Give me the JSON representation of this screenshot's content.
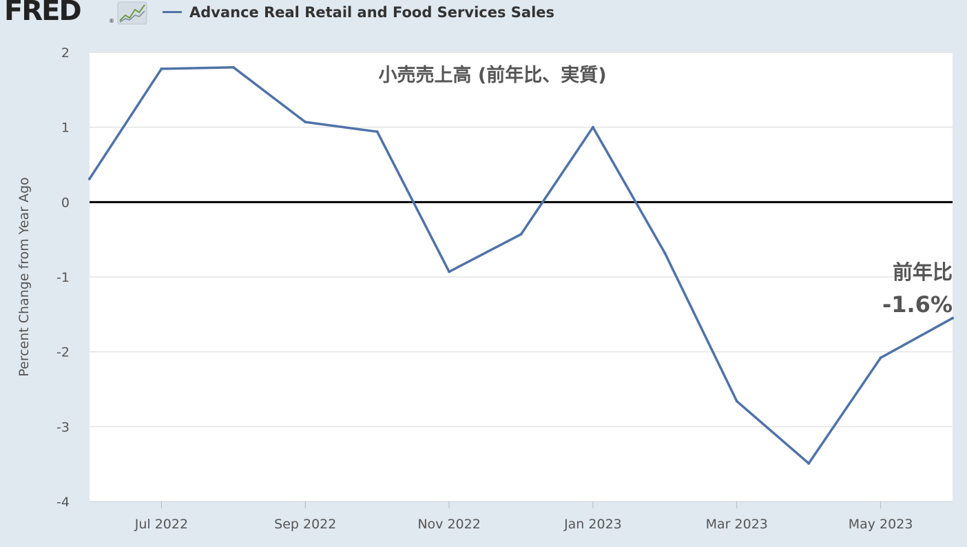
{
  "header": {
    "logo_text": "FRED",
    "logo_reg": "®",
    "logo_icon": "line-graph-icon",
    "legend_label": "Advance Real Retail and Food Services Sales",
    "legend_color": "#4f72a8"
  },
  "chart_data": {
    "type": "line",
    "title": "小売売上高 (前年比、実質)",
    "ylabel": "Percent Change from Year Ago",
    "xlabel": "",
    "x_tick_labels": [
      "Jul 2022",
      "Sep 2022",
      "Nov 2022",
      "Jan 2023",
      "Mar 2023",
      "May 2023"
    ],
    "y_ticks": [
      2,
      1,
      0,
      -1,
      -2,
      -3,
      -4
    ],
    "ylim": [
      -4,
      2
    ],
    "xlim": [
      "2022-06",
      "2023-06"
    ],
    "grid": true,
    "zero_line": true,
    "series": [
      {
        "color": "#4f72a8",
        "points": [
          {
            "x": "2022-06",
            "y": 0.31
          },
          {
            "x": "2022-07",
            "y": 1.78
          },
          {
            "x": "2022-08",
            "y": 1.8
          },
          {
            "x": "2022-09",
            "y": 1.07
          },
          {
            "x": "2022-10",
            "y": 0.94
          },
          {
            "x": "2022-11",
            "y": -0.93
          },
          {
            "x": "2022-12",
            "y": -0.43
          },
          {
            "x": "2023-01",
            "y": 1.0
          },
          {
            "x": "2023-02",
            "y": -0.68
          },
          {
            "x": "2023-03",
            "y": -2.66
          },
          {
            "x": "2023-04",
            "y": -3.49
          },
          {
            "x": "2023-05",
            "y": -2.08
          },
          {
            "x": "2023-06",
            "y": -1.55
          }
        ]
      }
    ],
    "annotation": {
      "line1": "前年比",
      "line2": "-1.6%"
    }
  }
}
